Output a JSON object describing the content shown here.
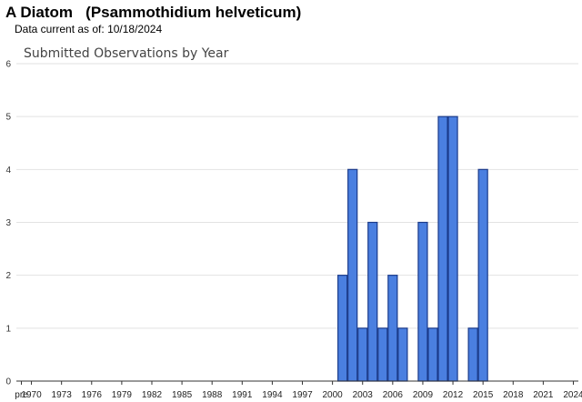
{
  "header": {
    "common_name": "A Diatom",
    "scientific_name": "(Psammothidium helveticum)",
    "data_current_label": "Data current as of:",
    "data_current_date": "10/18/2024"
  },
  "chart_data": {
    "type": "bar",
    "title": "Submitted Observations by Year",
    "xlabel": "",
    "ylabel": "",
    "ylim": [
      0,
      6
    ],
    "yticks": [
      "0",
      "1",
      "2",
      "3",
      "4",
      "5",
      "6"
    ],
    "grid": true,
    "categories": [
      "pre",
      "1970",
      "1971",
      "1972",
      "1973",
      "1974",
      "1975",
      "1976",
      "1977",
      "1978",
      "1979",
      "1980",
      "1981",
      "1982",
      "1983",
      "1984",
      "1985",
      "1986",
      "1987",
      "1988",
      "1989",
      "1990",
      "1991",
      "1992",
      "1993",
      "1994",
      "1995",
      "1996",
      "1997",
      "1998",
      "1999",
      "2000",
      "2001",
      "2002",
      "2003",
      "2004",
      "2005",
      "2006",
      "2007",
      "2008",
      "2009",
      "2010",
      "2011",
      "2012",
      "2013",
      "2014",
      "2015",
      "2016",
      "2017",
      "2018",
      "2019",
      "2020",
      "2021",
      "2022",
      "2023",
      "2024"
    ],
    "values": [
      0,
      0,
      0,
      0,
      0,
      0,
      0,
      0,
      0,
      0,
      0,
      0,
      0,
      0,
      0,
      0,
      0,
      0,
      0,
      0,
      0,
      0,
      0,
      0,
      0,
      0,
      0,
      0,
      0,
      0,
      0,
      0,
      2,
      4,
      1,
      3,
      1,
      2,
      1,
      0,
      3,
      1,
      5,
      5,
      0,
      1,
      4,
      0,
      0,
      0,
      0,
      0,
      0,
      0,
      0,
      0
    ],
    "x_tick_labels": [
      "pre",
      "1970",
      "1973",
      "1976",
      "1979",
      "1982",
      "1985",
      "1988",
      "1991",
      "1994",
      "1997",
      "2000",
      "2003",
      "2006",
      "2009",
      "2012",
      "2015",
      "2018",
      "2021",
      "2024"
    ],
    "bar_color": "#4a7fe0",
    "bar_edge_color": "#1a3a8a"
  }
}
